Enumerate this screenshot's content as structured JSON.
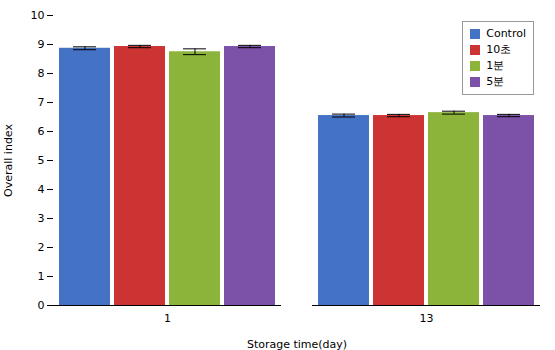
{
  "chart_data": {
    "type": "bar",
    "xlabel": "Storage time(day)",
    "ylabel": "Overall index",
    "categories": [
      "1",
      "13"
    ],
    "series": [
      {
        "name": "Control",
        "color": "#4472C4",
        "values": [
          8.87,
          6.55
        ],
        "errors": [
          0.05,
          0.05
        ]
      },
      {
        "name": "10초",
        "color": "#CC3333",
        "values": [
          8.93,
          6.55
        ],
        "errors": [
          0.04,
          0.04
        ]
      },
      {
        "name": "1분",
        "color": "#8DB43A",
        "values": [
          8.75,
          6.65
        ],
        "errors": [
          0.1,
          0.05
        ]
      },
      {
        "name": "5분",
        "color": "#7B52A8",
        "values": [
          8.93,
          6.55
        ],
        "errors": [
          0.04,
          0.04
        ]
      }
    ],
    "ylim": [
      0,
      10
    ],
    "yticks": [
      0,
      1,
      2,
      3,
      4,
      5,
      6,
      7,
      8,
      9,
      10
    ],
    "legend": "upper right",
    "grid": false
  }
}
